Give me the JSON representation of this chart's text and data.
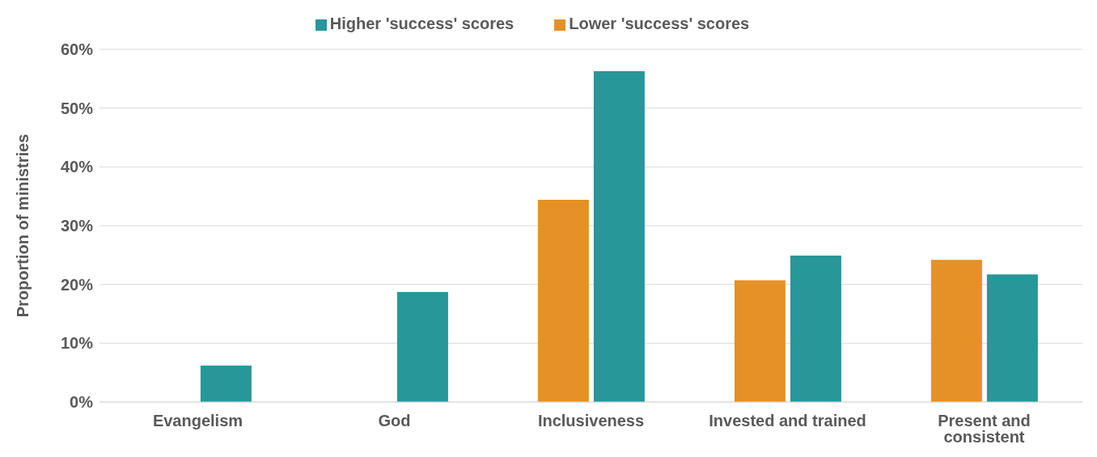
{
  "chart_data": {
    "type": "bar",
    "ylabel": "Proportion of ministries",
    "categories": [
      "Evangelism",
      "God",
      "Inclusiveness",
      "Invested and trained",
      "Present and consistent"
    ],
    "series": [
      {
        "name": "Lower 'success' scores",
        "color": "#e69125",
        "values": [
          0,
          0,
          34.4,
          20.7,
          24.2
        ]
      },
      {
        "name": "Higher 'success' scores",
        "color": "#27979a",
        "values": [
          6.2,
          18.7,
          56.3,
          24.9,
          21.7
        ]
      }
    ],
    "ylim": [
      0,
      60
    ],
    "yticks": [
      {
        "value": 0,
        "label": "0%"
      },
      {
        "value": 10,
        "label": "10%"
      },
      {
        "value": 20,
        "label": "20%"
      },
      {
        "value": 30,
        "label": "30%"
      },
      {
        "value": 40,
        "label": "40%"
      },
      {
        "value": 50,
        "label": "50%"
      },
      {
        "value": 60,
        "label": "60%"
      }
    ],
    "grid": "y",
    "legend": "top"
  }
}
